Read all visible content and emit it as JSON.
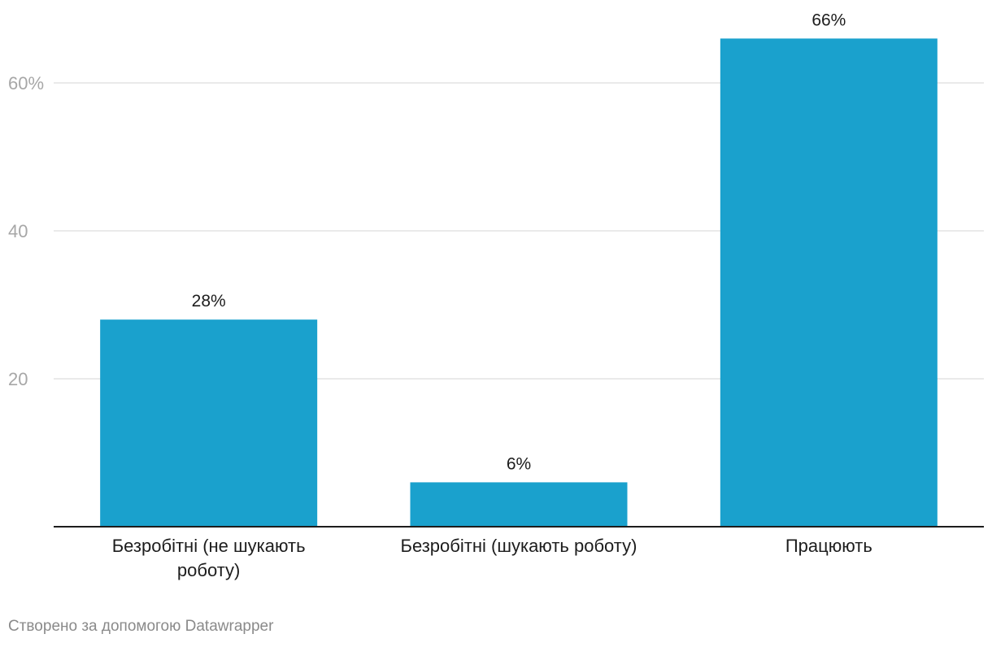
{
  "chart_data": {
    "type": "bar",
    "categories": [
      "Безробітні (не шукають роботу)",
      "Безробітні (шукають роботу)",
      "Працюють"
    ],
    "values": [
      28,
      6,
      66
    ],
    "value_labels": [
      "28%",
      "6%",
      "66%"
    ],
    "title": "",
    "xlabel": "",
    "ylabel": "",
    "ylim": [
      0,
      70
    ],
    "y_ticks": [
      {
        "value": 20,
        "label": "20"
      },
      {
        "value": 40,
        "label": "40"
      },
      {
        "value": 60,
        "label": "60%"
      }
    ],
    "grid": true,
    "legend": "none",
    "bar_color": "#1aa1cd",
    "grid_color": "#e3e3e3",
    "axis_color": "#1d1d1d"
  },
  "footer": {
    "credit": "Створено за допомогою Datawrapper"
  }
}
